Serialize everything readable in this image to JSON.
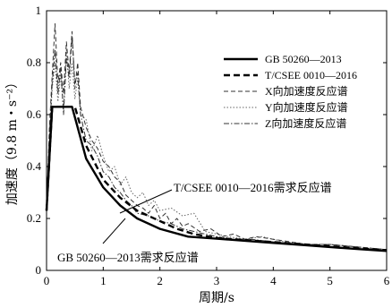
{
  "chart_data": {
    "type": "line",
    "xlabel": "周期/s",
    "ylabel": "加速度（9.8 m・s⁻²）",
    "xlim": [
      0,
      6
    ],
    "ylim": [
      0,
      1
    ],
    "xticks": [
      "0",
      "1",
      "2",
      "3",
      "4",
      "5",
      "6"
    ],
    "yticks": [
      "0",
      "0.2",
      "0.4",
      "0.6",
      "0.8",
      "1"
    ],
    "grid": false,
    "legend_position": "top-right",
    "legend": [
      {
        "label": "GB 50260—2013",
        "style": "solid-thick",
        "color": "#000000"
      },
      {
        "label": "T/CSEE 0010—2016",
        "style": "dashed-thick",
        "color": "#000000"
      },
      {
        "label": "X向加速度反应谱",
        "style": "dashed-thin",
        "color": "#333333"
      },
      {
        "label": "Y向加速度反应谱",
        "style": "dotted-thin",
        "color": "#666666"
      },
      {
        "label": "Z向加速度反应谱",
        "style": "dashdot-thin",
        "color": "#333333"
      }
    ],
    "annotations": [
      {
        "text": "T/CSEE 0010—2016需求反应谱"
      },
      {
        "text": "GB 50260—2013需求反应谱"
      }
    ],
    "series": [
      {
        "name": "GB 50260—2013",
        "x": [
          0,
          0.1,
          0.45,
          0.7,
          1.0,
          1.3,
          1.6,
          2.0,
          2.5,
          3.0,
          3.5,
          4.0,
          4.5,
          5.0,
          5.5,
          6.0
        ],
        "y": [
          0.23,
          0.63,
          0.63,
          0.43,
          0.32,
          0.25,
          0.2,
          0.16,
          0.13,
          0.122,
          0.114,
          0.106,
          0.098,
          0.09,
          0.082,
          0.075
        ]
      },
      {
        "name": "T/CSEE 0010—2016",
        "x": [
          0,
          0.1,
          0.5,
          0.7,
          1.0,
          1.3,
          1.6,
          2.0,
          2.3,
          2.6,
          3.0,
          3.5,
          4.0,
          4.5,
          5.0,
          5.5,
          6.0
        ],
        "y": [
          0.23,
          0.63,
          0.63,
          0.48,
          0.35,
          0.28,
          0.23,
          0.19,
          0.16,
          0.14,
          0.125,
          0.117,
          0.109,
          0.101,
          0.093,
          0.085,
          0.078
        ]
      },
      {
        "name": "X向加速度反应谱",
        "x": [
          0,
          0.05,
          0.1,
          0.15,
          0.2,
          0.25,
          0.3,
          0.35,
          0.4,
          0.45,
          0.5,
          0.55,
          0.6,
          0.7,
          0.8,
          0.9,
          1.0,
          1.1,
          1.2,
          1.3,
          1.4,
          1.5,
          1.6,
          1.7,
          1.8,
          1.9,
          2.0,
          2.1,
          2.2,
          2.3,
          2.4,
          2.5,
          2.7,
          2.9,
          3.1,
          3.3,
          3.5,
          3.7,
          4.0,
          4.3,
          4.6,
          5.0,
          5.5,
          6.0
        ],
        "y": [
          0.23,
          0.55,
          0.75,
          0.95,
          0.72,
          0.8,
          0.68,
          0.88,
          0.76,
          0.92,
          0.7,
          0.8,
          0.63,
          0.55,
          0.5,
          0.47,
          0.42,
          0.4,
          0.36,
          0.34,
          0.29,
          0.27,
          0.25,
          0.24,
          0.22,
          0.25,
          0.2,
          0.22,
          0.18,
          0.2,
          0.17,
          0.18,
          0.15,
          0.16,
          0.13,
          0.14,
          0.12,
          0.13,
          0.12,
          0.11,
          0.1,
          0.1,
          0.09,
          0.08
        ]
      },
      {
        "name": "Y向加速度反应谱",
        "x": [
          0,
          0.05,
          0.1,
          0.15,
          0.2,
          0.25,
          0.3,
          0.35,
          0.4,
          0.45,
          0.5,
          0.55,
          0.6,
          0.7,
          0.8,
          0.9,
          1.0,
          1.1,
          1.2,
          1.3,
          1.4,
          1.5,
          1.6,
          1.7,
          1.8,
          1.9,
          2.0,
          2.2,
          2.4,
          2.6,
          2.8,
          3.0,
          3.2,
          3.5,
          3.8,
          4.2,
          4.6,
          5.0,
          5.5,
          6.0
        ],
        "y": [
          0.23,
          0.5,
          0.7,
          0.8,
          0.65,
          0.75,
          0.62,
          0.85,
          0.7,
          0.8,
          0.66,
          0.74,
          0.6,
          0.58,
          0.46,
          0.52,
          0.44,
          0.38,
          0.4,
          0.33,
          0.36,
          0.3,
          0.28,
          0.3,
          0.25,
          0.27,
          0.23,
          0.24,
          0.21,
          0.22,
          0.15,
          0.14,
          0.13,
          0.12,
          0.13,
          0.11,
          0.1,
          0.1,
          0.09,
          0.08
        ]
      },
      {
        "name": "Z向加速度反应谱",
        "x": [
          0,
          0.05,
          0.1,
          0.15,
          0.2,
          0.25,
          0.3,
          0.35,
          0.4,
          0.45,
          0.5,
          0.55,
          0.6,
          0.7,
          0.8,
          0.9,
          1.0,
          1.1,
          1.2,
          1.3,
          1.4,
          1.5,
          1.6,
          1.8,
          2.0,
          2.2,
          2.4,
          2.6,
          2.8,
          3.0,
          3.3,
          3.6,
          4.0,
          4.5,
          5.0,
          5.5,
          6.0
        ],
        "y": [
          0.23,
          0.52,
          0.72,
          0.85,
          0.68,
          0.78,
          0.6,
          0.82,
          0.74,
          0.9,
          0.72,
          0.76,
          0.6,
          0.5,
          0.48,
          0.44,
          0.38,
          0.36,
          0.32,
          0.3,
          0.27,
          0.25,
          0.22,
          0.21,
          0.19,
          0.18,
          0.16,
          0.15,
          0.14,
          0.13,
          0.12,
          0.12,
          0.11,
          0.1,
          0.1,
          0.09,
          0.08
        ]
      }
    ]
  }
}
